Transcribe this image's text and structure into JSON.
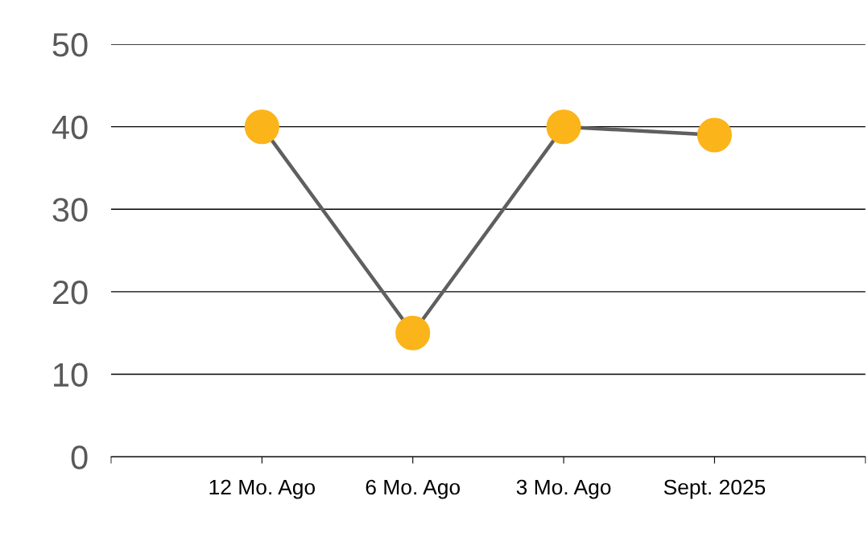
{
  "chart_data": {
    "type": "line",
    "categories": [
      "12 Mo. Ago",
      "6 Mo. Ago",
      "3 Mo. Ago",
      "Sept. 2025"
    ],
    "series": [
      {
        "color": "#5f5f5f",
        "colors": [
          "#fbb41a",
          "#fbb41a",
          "#fbb41a",
          "#fbb41a"
        ],
        "values": [
          40,
          15,
          40,
          39
        ]
      }
    ],
    "ylim": [
      0,
      50
    ],
    "yticks": [
      0,
      10,
      20,
      30,
      40,
      50
    ],
    "grid": "y",
    "marker": "circle",
    "line_style": "solid"
  }
}
